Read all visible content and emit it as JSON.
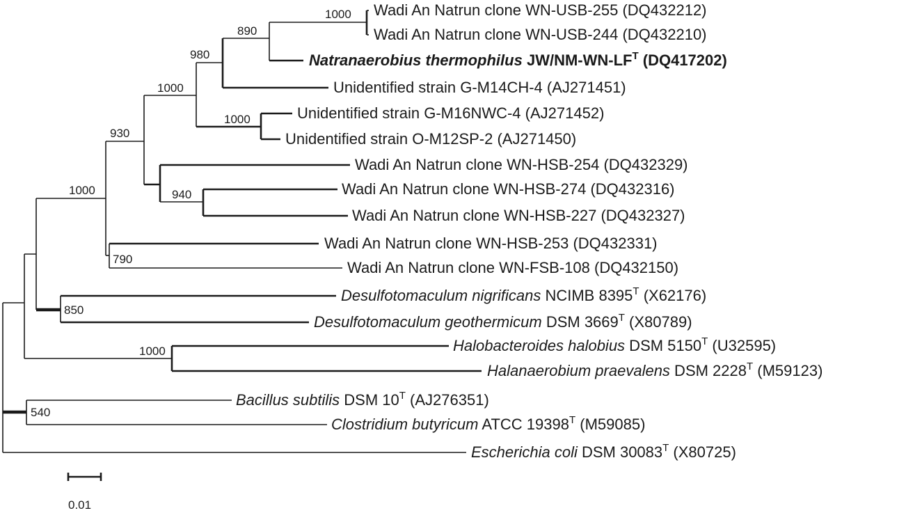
{
  "tree": {
    "taxa": [
      {
        "id": "wn-usb-255",
        "italic": "",
        "plain": "Wadi An Natrun clone WN-USB-255",
        "type": "",
        "acc": "(DQ432212)",
        "bold": false
      },
      {
        "id": "wn-usb-244",
        "italic": "",
        "plain": "Wadi An Natrun clone WN-USB-244",
        "type": "",
        "acc": "(DQ432210)",
        "bold": false
      },
      {
        "id": "natranaerobius",
        "italic": "Natranaerobius thermophilus",
        "plain": "JW/NM-WN-LF",
        "type": "T",
        "acc": "(DQ417202)",
        "bold": true
      },
      {
        "id": "g-m14ch-4",
        "italic": "",
        "plain": "Unidentified strain G-M14CH-4",
        "type": "",
        "acc": "(AJ271451)",
        "bold": false
      },
      {
        "id": "g-m16nwc-4",
        "italic": "",
        "plain": "Unidentified strain G-M16NWC-4",
        "type": "",
        "acc": "(AJ271452)",
        "bold": false
      },
      {
        "id": "o-m12sp-2",
        "italic": "",
        "plain": "Unidentified strain O-M12SP-2",
        "type": "",
        "acc": "(AJ271450)",
        "bold": false
      },
      {
        "id": "wn-hsb-254",
        "italic": "",
        "plain": "Wadi An Natrun clone WN-HSB-254",
        "type": "",
        "acc": "(DQ432329)",
        "bold": false
      },
      {
        "id": "wn-hsb-274",
        "italic": "",
        "plain": "Wadi An Natrun clone WN-HSB-274",
        "type": "",
        "acc": "(DQ432316)",
        "bold": false
      },
      {
        "id": "wn-hsb-227",
        "italic": "",
        "plain": "Wadi An Natrun clone WN-HSB-227",
        "type": "",
        "acc": "(DQ432327)",
        "bold": false
      },
      {
        "id": "wn-hsb-253",
        "italic": "",
        "plain": "Wadi An Natrun clone WN-HSB-253",
        "type": "",
        "acc": "(DQ432331)",
        "bold": false
      },
      {
        "id": "wn-fsb-108",
        "italic": "",
        "plain": "Wadi An Natrun clone WN-FSB-108",
        "type": "",
        "acc": "(DQ432150)",
        "bold": false
      },
      {
        "id": "desulfo-nigrificans",
        "italic": "Desulfotomaculum nigrificans",
        "plain": "NCIMB 8395",
        "type": "T",
        "acc": "(X62176)",
        "bold": false
      },
      {
        "id": "desulfo-geothermicum",
        "italic": "Desulfotomaculum geothermicum",
        "plain": "DSM 3669",
        "type": "T",
        "acc": "(X80789)",
        "bold": false
      },
      {
        "id": "halobacteroides",
        "italic": "Halobacteroides halobius",
        "plain": "DSM 5150",
        "type": "T",
        "acc": "(U32595)",
        "bold": false
      },
      {
        "id": "halanaerobium",
        "italic": "Halanaerobium praevalens",
        "plain": "DSM 2228",
        "type": "T",
        "acc": "(M59123)",
        "bold": false
      },
      {
        "id": "bacillus",
        "italic": "Bacillus subtilis",
        "plain": "DSM 10",
        "type": "T",
        "acc": "(AJ276351)",
        "bold": false
      },
      {
        "id": "clostridium",
        "italic": "Clostridium butyricum",
        "plain": "ATCC 19398",
        "type": "T",
        "acc": "(M59085)",
        "bold": false
      },
      {
        "id": "ecoli",
        "italic": "Escherichia coli",
        "plain": "DSM 30083",
        "type": "T",
        "acc": "(X80725)",
        "bold": false
      }
    ],
    "bootstrap": [
      "1000",
      "890",
      "980",
      "1000",
      "1000",
      "930",
      "940",
      "1000",
      "790",
      "850",
      "1000",
      "540"
    ],
    "scale_label": "0.01"
  }
}
